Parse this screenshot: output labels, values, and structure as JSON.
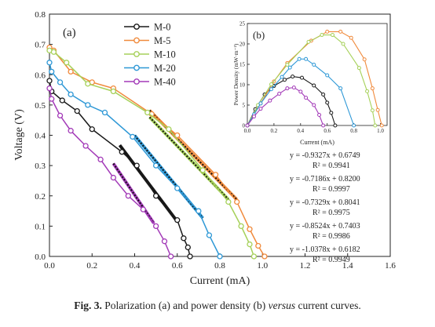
{
  "caption": {
    "label": "Fig. 3.",
    "pre": "Polarization (a) and power density (b)",
    "italic": "versus",
    "post": "current curves."
  },
  "chart_data": [
    {
      "type": "line",
      "panel_label": "(a)",
      "xlabel": "Current (mA)",
      "ylabel": "Voltage (V)",
      "xlim": [
        0,
        1.6
      ],
      "ylim": [
        0,
        0.8
      ],
      "xticks": [
        "0.0",
        "0.2",
        "0.4",
        "0.6",
        "0.8",
        "1.0",
        "1.2",
        "1.4",
        "1.6"
      ],
      "yticks": [
        "0.0",
        "0.1",
        "0.2",
        "0.3",
        "0.4",
        "0.5",
        "0.6",
        "0.7",
        "0.8"
      ],
      "legend_position": "top-center",
      "series": [
        {
          "name": "M-0",
          "color": "#1a1a1a",
          "x": [
            0.0,
            0.01,
            0.06,
            0.13,
            0.2,
            0.34,
            0.41,
            0.5,
            0.6,
            0.63,
            0.65,
            0.66
          ],
          "y": [
            0.58,
            0.545,
            0.515,
            0.48,
            0.42,
            0.345,
            0.3,
            0.2,
            0.12,
            0.06,
            0.03,
            0.0
          ]
        },
        {
          "name": "M-5",
          "color": "#f08a3c",
          "x": [
            0.0,
            0.02,
            0.1,
            0.2,
            0.3,
            0.48,
            0.6,
            0.78,
            0.88,
            0.94,
            0.98,
            1.01
          ],
          "y": [
            0.69,
            0.68,
            0.61,
            0.575,
            0.555,
            0.47,
            0.4,
            0.27,
            0.18,
            0.09,
            0.035,
            0.0
          ]
        },
        {
          "name": "M-10",
          "color": "#a6d15a",
          "x": [
            0.0,
            0.02,
            0.08,
            0.18,
            0.3,
            0.46,
            0.56,
            0.72,
            0.84,
            0.9,
            0.94,
            0.96
          ],
          "y": [
            0.68,
            0.675,
            0.64,
            0.57,
            0.545,
            0.475,
            0.42,
            0.285,
            0.18,
            0.1,
            0.04,
            0.0
          ]
        },
        {
          "name": "M-20",
          "color": "#2e98d6",
          "x": [
            0.0,
            0.01,
            0.05,
            0.1,
            0.18,
            0.26,
            0.39,
            0.5,
            0.6,
            0.7,
            0.75,
            0.8
          ],
          "y": [
            0.64,
            0.61,
            0.575,
            0.535,
            0.5,
            0.475,
            0.395,
            0.3,
            0.225,
            0.15,
            0.07,
            0.0
          ]
        },
        {
          "name": "M-40",
          "color": "#a33ab8",
          "x": [
            0.0,
            0.01,
            0.05,
            0.1,
            0.17,
            0.24,
            0.3,
            0.37,
            0.44,
            0.5,
            0.54,
            0.57
          ],
          "y": [
            0.555,
            0.52,
            0.465,
            0.415,
            0.365,
            0.32,
            0.26,
            0.2,
            0.155,
            0.1,
            0.05,
            0.0
          ]
        }
      ],
      "fit_lines": [
        {
          "x": [
            0.33,
            0.6
          ],
          "color": "#1a1a1a"
        },
        {
          "x": [
            0.47,
            0.88
          ],
          "color": "#f08a3c"
        },
        {
          "x": [
            0.47,
            0.84
          ],
          "color": "#a6d15a"
        },
        {
          "x": [
            0.4,
            0.72
          ],
          "color": "#2e98d6"
        },
        {
          "x": [
            0.3,
            0.49
          ],
          "color": "#a33ab8"
        }
      ],
      "annotations": [
        {
          "eq": "y = -0.9327x + 0.6749",
          "r2": "R² = 0.9941"
        },
        {
          "eq": "y = -0.7186x + 0.8200",
          "r2": "R² = 0.9997"
        },
        {
          "eq": "y = -0.7329x + 0.8041",
          "r2": "R² = 0.9975"
        },
        {
          "eq": "y = -0.8524x + 0.7403",
          "r2": "R² = 0.9986"
        },
        {
          "eq": "y = -1.0378x + 0.6182",
          "r2": "R² = 0.9949"
        }
      ]
    },
    {
      "type": "line",
      "panel_label": "(b)",
      "xlabel": "Current (mA)",
      "ylabel": "Power Density (mW·m⁻²)",
      "xlim": [
        0,
        1.05
      ],
      "ylim": [
        0,
        25
      ],
      "xticks": [
        "0.0",
        "0.2",
        "0.4",
        "0.6",
        "0.8",
        "1.0"
      ],
      "yticks": [
        "0",
        "5",
        "10",
        "15",
        "20",
        "25"
      ],
      "series": [
        {
          "name": "M-0",
          "color": "#1a1a1a",
          "x": [
            0.0,
            0.06,
            0.13,
            0.2,
            0.28,
            0.34,
            0.41,
            0.5,
            0.57,
            0.6,
            0.63,
            0.66
          ],
          "y": [
            0.0,
            4.0,
            7.6,
            9.7,
            11.2,
            12.0,
            11.7,
            9.8,
            7.6,
            5.6,
            3.1,
            0.0
          ]
        },
        {
          "name": "M-5",
          "color": "#f08a3c",
          "x": [
            0.0,
            0.1,
            0.2,
            0.3,
            0.48,
            0.6,
            0.7,
            0.78,
            0.88,
            0.94,
            0.98,
            1.01
          ],
          "y": [
            0.0,
            5.4,
            10.8,
            15.3,
            20.8,
            23.0,
            23.0,
            21.5,
            16.2,
            9.1,
            3.8,
            0.0
          ]
        },
        {
          "name": "M-10",
          "color": "#a6d15a",
          "x": [
            0.0,
            0.08,
            0.18,
            0.3,
            0.46,
            0.56,
            0.64,
            0.72,
            0.84,
            0.9,
            0.94,
            0.96
          ],
          "y": [
            0.0,
            5.0,
            10.1,
            14.9,
            20.5,
            22.2,
            22.2,
            20.0,
            14.1,
            8.4,
            3.7,
            0.0
          ]
        },
        {
          "name": "M-20",
          "color": "#2e98d6",
          "x": [
            0.0,
            0.05,
            0.1,
            0.18,
            0.26,
            0.32,
            0.39,
            0.44,
            0.5,
            0.6,
            0.7,
            0.8
          ],
          "y": [
            0.0,
            2.7,
            5.4,
            8.9,
            11.9,
            14.2,
            16.3,
            16.3,
            14.9,
            12.3,
            9.1,
            0.0
          ]
        },
        {
          "name": "M-40",
          "color": "#a33ab8",
          "x": [
            0.0,
            0.05,
            0.1,
            0.17,
            0.24,
            0.3,
            0.35,
            0.4,
            0.44,
            0.5,
            0.54,
            0.57
          ],
          "y": [
            0.0,
            2.2,
            4.1,
            6.1,
            7.8,
            9.1,
            9.3,
            8.3,
            6.8,
            5.0,
            2.6,
            0.0
          ]
        }
      ]
    }
  ]
}
